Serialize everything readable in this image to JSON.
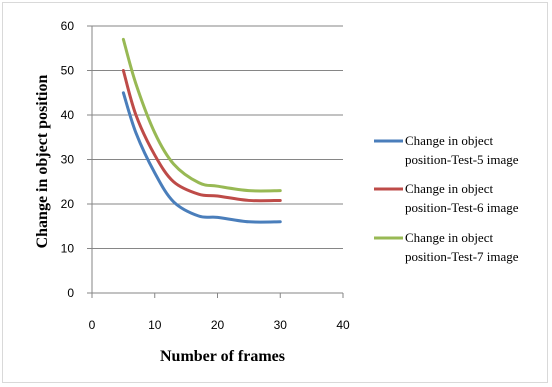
{
  "chart_data": {
    "type": "line",
    "title": "",
    "xlabel": "Number of frames",
    "ylabel": "Change in object position",
    "xlim": [
      0,
      40
    ],
    "ylim": [
      0,
      60
    ],
    "xticks": [
      0,
      10,
      20,
      30,
      40
    ],
    "yticks": [
      0,
      10,
      20,
      30,
      40,
      50,
      60
    ],
    "grid": "horizontal",
    "legend_position": "right",
    "series": [
      {
        "name": "Change in object position-Test-5 image",
        "color": "#4a7ebb",
        "x": [
          5,
          7,
          10,
          13,
          17,
          20,
          25,
          30
        ],
        "y": [
          45,
          36,
          27,
          20.5,
          17.3,
          17,
          16,
          16
        ]
      },
      {
        "name": "Change in object position-Test-6 image",
        "color": "#be4b48",
        "x": [
          5,
          7,
          10,
          13,
          17,
          20,
          25,
          30
        ],
        "y": [
          50,
          40,
          31,
          25,
          22.2,
          21.8,
          20.8,
          20.8
        ]
      },
      {
        "name": "Change in object position-Test-7 image",
        "color": "#98b954",
        "x": [
          5,
          7,
          10,
          13,
          17,
          20,
          25,
          30
        ],
        "y": [
          57,
          47,
          36,
          29,
          24.8,
          24,
          23,
          23
        ]
      }
    ]
  }
}
